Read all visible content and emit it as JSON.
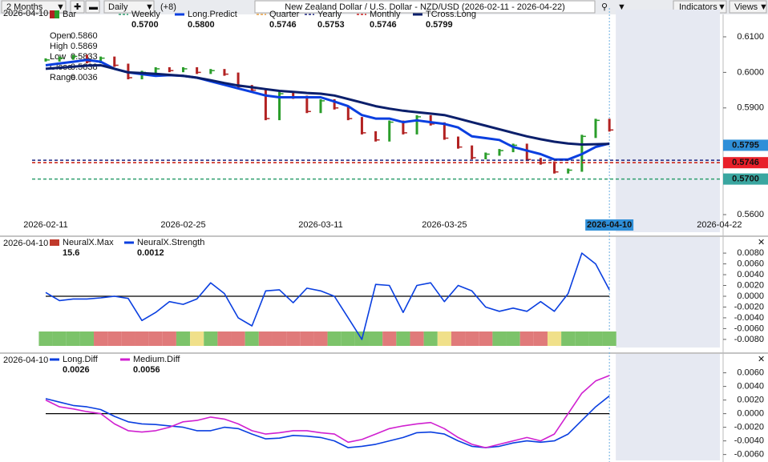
{
  "toolbar": {
    "period": "2 Months",
    "interval": "Daily",
    "extra": "(+8)",
    "title": "New Zealand Dollar / U.S. Dollar - NZD/USD (2026-02-11 - 2026-04-22)",
    "indicators": "Indicators",
    "views": "Views"
  },
  "chart_data": [
    {
      "type": "price",
      "date_label": "2026-04-10",
      "categories": [
        "2026-02-11",
        null,
        null,
        null,
        null,
        null,
        null,
        null,
        null,
        null,
        "2026-02-25",
        null,
        null,
        null,
        null,
        null,
        null,
        null,
        null,
        null,
        "2026-03-11",
        null,
        null,
        null,
        null,
        null,
        null,
        null,
        null,
        "2026-03-25",
        null,
        null,
        null,
        null,
        null,
        null,
        null,
        null,
        null,
        null,
        null,
        "2026-04-10",
        null,
        null,
        null,
        null,
        null,
        null,
        null,
        "2026-04-22"
      ],
      "ylim": [
        0.5546,
        0.6154
      ],
      "yticks": [
        {
          "value": 0.61,
          "label": "0.6100"
        },
        {
          "value": 0.6,
          "label": "0.6000"
        },
        {
          "value": 0.59,
          "label": "0.5900"
        },
        {
          "value": 0.56,
          "label": "0.5600"
        }
      ],
      "info": [
        {
          "label": "Open",
          "value": "0.5860"
        },
        {
          "label": "High",
          "value": "0.5869"
        },
        {
          "label": "Low",
          "value": "0.5833"
        },
        {
          "label": "Close",
          "value": "0.5838"
        },
        {
          "label": "Range",
          "value": "0.0036"
        }
      ],
      "series": [
        {
          "name": "Bar",
          "style": "bar",
          "color": "#2a9d2a",
          "down_color": "#b22222",
          "values": [
            0.6035,
            0.604,
            0.6045,
            0.603,
            0.604,
            0.602,
            0.5985,
            0.6,
            0.601,
            0.6005,
            0.601,
            0.6,
            0.6005,
            0.5995,
            0.596,
            0.595,
            0.587,
            0.594,
            0.593,
            0.589,
            0.592,
            0.59,
            0.587,
            0.583,
            0.581,
            0.586,
            0.583,
            0.5875,
            0.5855,
            0.5815,
            0.579,
            0.576,
            0.577,
            0.578,
            0.5795,
            0.5755,
            0.5745,
            0.572,
            0.5725,
            0.582,
            0.5865,
            0.5838,
            null,
            null,
            null,
            null,
            null,
            null,
            null,
            null
          ]
        },
        {
          "name": "Weekly",
          "style": "level",
          "color": "#2e9e6e",
          "level": 0.57,
          "value_label": "0.5700"
        },
        {
          "name": "Long.Predict",
          "style": "line",
          "color": "#0a3fe0",
          "value_label": "0.5800",
          "values": [
            0.602,
            0.6025,
            0.603,
            0.6035,
            0.603,
            0.601,
            0.6,
            0.5995,
            0.599,
            0.5992,
            0.599,
            0.5985,
            0.5975,
            0.5965,
            0.5955,
            0.5945,
            0.5935,
            0.593,
            0.593,
            0.593,
            0.593,
            0.5918,
            0.5905,
            0.588,
            0.587,
            0.587,
            0.586,
            0.5865,
            0.586,
            0.5855,
            0.5845,
            0.582,
            0.5815,
            0.581,
            0.579,
            0.578,
            0.577,
            0.5755,
            0.5755,
            0.577,
            0.579,
            0.58,
            null,
            null,
            null,
            null,
            null,
            null,
            null,
            null
          ]
        },
        {
          "name": "Quarter",
          "style": "level",
          "color": "#e8a040",
          "level": 0.5746,
          "value_label": "0.5746"
        },
        {
          "name": "Yearly",
          "style": "level",
          "color": "#1a237e",
          "level": 0.5753,
          "value_label": "0.5753"
        },
        {
          "name": "Monthly",
          "style": "level",
          "color": "#cc2222",
          "level": 0.5746,
          "value_label": "0.5746"
        },
        {
          "name": "TCross.Long",
          "style": "line",
          "color": "#0b1f6b",
          "value_label": "0.5799",
          "values": [
            0.601,
            0.6013,
            0.6016,
            0.6019,
            0.602,
            0.601,
            0.6,
            0.5998,
            0.5996,
            0.5993,
            0.599,
            0.5985,
            0.5978,
            0.597,
            0.5963,
            0.5958,
            0.5953,
            0.5948,
            0.5945,
            0.5942,
            0.594,
            0.5935,
            0.5925,
            0.5915,
            0.5905,
            0.5898,
            0.5892,
            0.5888,
            0.5884,
            0.588,
            0.587,
            0.586,
            0.585,
            0.584,
            0.583,
            0.582,
            0.5812,
            0.5805,
            0.58,
            0.5797,
            0.5798,
            0.5799,
            null,
            null,
            null,
            null,
            null,
            null,
            null,
            null
          ]
        }
      ],
      "price_markers": [
        {
          "value": 0.5795,
          "label": "0.5795",
          "color": "#2f8fd8"
        },
        {
          "value": 0.5746,
          "label": "0.5746",
          "color": "#e8202a"
        },
        {
          "value": 0.57,
          "label": "0.5700",
          "color": "#3aa6a0"
        }
      ]
    },
    {
      "type": "line",
      "date_label": "2026-04-10",
      "ylim": [
        -0.0098,
        0.0095
      ],
      "yticks": [
        {
          "value": 0.008,
          "label": "0.0080"
        },
        {
          "value": 0.006,
          "label": "0.0060"
        },
        {
          "value": 0.004,
          "label": "0.0040"
        },
        {
          "value": 0.002,
          "label": "0.0020"
        },
        {
          "value": 0,
          "label": "0.0000"
        },
        {
          "value": -0.002,
          "label": "-0.0020"
        },
        {
          "value": -0.004,
          "label": "-0.0040"
        },
        {
          "value": -0.006,
          "label": "-0.0060"
        },
        {
          "value": -0.008,
          "label": "-0.0080"
        }
      ],
      "zero_line": 0,
      "series": [
        {
          "name": "NeuralX.Max",
          "style": "strip",
          "color": "#c0392b",
          "value_label": "15.6",
          "colors": [
            "#7cc36a",
            "#7cc36a",
            "#7cc36a",
            "#7cc36a",
            "#e07a7a",
            "#e07a7a",
            "#e07a7a",
            "#e07a7a",
            "#e07a7a",
            "#e07a7a",
            "#7cc36a",
            "#f0e08a",
            "#7cc36a",
            "#e07a7a",
            "#e07a7a",
            "#7cc36a",
            "#e07a7a",
            "#e07a7a",
            "#e07a7a",
            "#e07a7a",
            "#e07a7a",
            "#7cc36a",
            "#7cc36a",
            "#7cc36a",
            "#7cc36a",
            "#e07a7a",
            "#7cc36a",
            "#e07a7a",
            "#7cc36a",
            "#f0e08a",
            "#e07a7a",
            "#e07a7a",
            "#e07a7a",
            "#7cc36a",
            "#7cc36a",
            "#e07a7a",
            "#e07a7a",
            "#f0e08a",
            "#7cc36a",
            "#7cc36a",
            "#7cc36a",
            "#7cc36a"
          ]
        },
        {
          "name": "NeuralX.Strength",
          "style": "line",
          "color": "#0a3fe0",
          "value_label": "0.0012",
          "values": [
            0.0007,
            -0.0008,
            -0.0005,
            -0.0005,
            -0.0003,
            0,
            -0.0004,
            -0.0045,
            -0.003,
            -0.001,
            -0.0015,
            -0.0005,
            0.0025,
            0.0005,
            -0.004,
            -0.0055,
            0.001,
            0.0012,
            -0.0012,
            0.0015,
            0.001,
            0,
            -0.004,
            -0.008,
            0.0022,
            0.002,
            -0.003,
            0.002,
            0.0025,
            -0.001,
            0.002,
            0.001,
            -0.002,
            -0.0028,
            -0.0022,
            -0.0028,
            -0.001,
            -0.0028,
            0.0005,
            0.008,
            0.006,
            0.0012
          ]
        }
      ]
    },
    {
      "type": "line",
      "date_label": "2026-04-10",
      "ylim": [
        -0.0071,
        0.0076
      ],
      "yticks": [
        {
          "value": 0.006,
          "label": "0.0060"
        },
        {
          "value": 0.004,
          "label": "0.0040"
        },
        {
          "value": 0.002,
          "label": "0.0020"
        },
        {
          "value": 0,
          "label": "0.0000"
        },
        {
          "value": -0.002,
          "label": "-0.0020"
        },
        {
          "value": -0.004,
          "label": "-0.0040"
        },
        {
          "value": -0.006,
          "label": "-0.0060"
        }
      ],
      "zero_line": 0,
      "series": [
        {
          "name": "Long.Diff",
          "style": "line",
          "color": "#0a3fe0",
          "value_label": "0.0026",
          "values": [
            0.0022,
            0.0017,
            0.0012,
            0.001,
            0.0006,
            -0.0004,
            -0.0012,
            -0.0015,
            -0.0016,
            -0.0018,
            -0.002,
            -0.0025,
            -0.0025,
            -0.002,
            -0.0022,
            -0.003,
            -0.0037,
            -0.0036,
            -0.0032,
            -0.0033,
            -0.0035,
            -0.004,
            -0.005,
            -0.0048,
            -0.0045,
            -0.004,
            -0.0035,
            -0.0028,
            -0.0027,
            -0.003,
            -0.004,
            -0.0048,
            -0.005,
            -0.0048,
            -0.0043,
            -0.004,
            -0.0042,
            -0.004,
            -0.003,
            -0.001,
            0.001,
            0.0026
          ]
        },
        {
          "name": "Medium.Diff",
          "style": "line",
          "color": "#d020d0",
          "value_label": "0.0056",
          "values": [
            0.002,
            0.001,
            0.0007,
            0.0003,
            0,
            -0.0015,
            -0.0025,
            -0.0027,
            -0.0025,
            -0.002,
            -0.0012,
            -0.001,
            -0.0005,
            -0.0008,
            -0.0015,
            -0.0025,
            -0.003,
            -0.0028,
            -0.0025,
            -0.0025,
            -0.0028,
            -0.003,
            -0.0042,
            -0.0038,
            -0.003,
            -0.0022,
            -0.0018,
            -0.0015,
            -0.0013,
            -0.0022,
            -0.0035,
            -0.0045,
            -0.005,
            -0.0045,
            -0.004,
            -0.0035,
            -0.004,
            -0.003,
            0,
            0.003,
            0.0048,
            0.0056
          ]
        }
      ]
    }
  ]
}
